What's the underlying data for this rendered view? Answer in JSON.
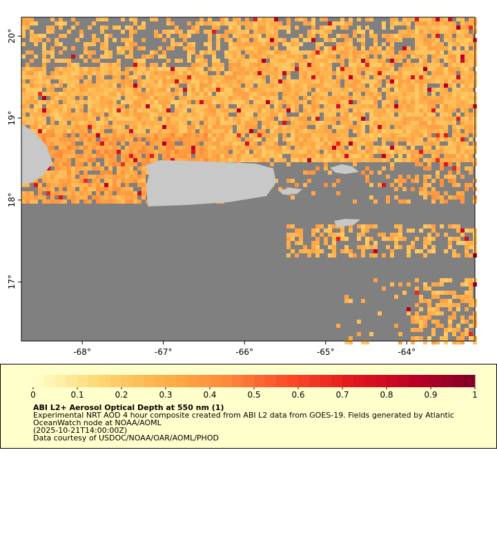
{
  "map": {
    "lat_ticks": [
      {
        "value": 20,
        "label": "20°"
      },
      {
        "value": 19,
        "label": "19°"
      },
      {
        "value": 18,
        "label": "18°"
      },
      {
        "value": 17,
        "label": "17°"
      }
    ],
    "lon_ticks": [
      {
        "value": -68,
        "label": "-68°"
      },
      {
        "value": -67,
        "label": "-67°"
      },
      {
        "value": -66,
        "label": "-66°"
      },
      {
        "value": -65,
        "label": "-65°"
      },
      {
        "value": -64,
        "label": "-64°"
      }
    ],
    "lon_range": [
      -68.75,
      -63.16
    ],
    "lat_range": [
      16.28,
      20.23
    ]
  },
  "colorbar": {
    "ticks": [
      0,
      0.1,
      0.2,
      0.3,
      0.4,
      0.5,
      0.6,
      0.7,
      0.8,
      0.9,
      1
    ],
    "colors": [
      "#ffffcc",
      "#fed976",
      "#feb24c",
      "#fd8d3c",
      "#fc4e2a",
      "#e31a1c",
      "#bd0026",
      "#800026"
    ]
  },
  "legend": {
    "title": "ABI L2+ Aerosol Optical Depth at 550 nm (1)",
    "lines": [
      "Experimental NRT AOD 4 hour composite created from ABI L2 data from GOES-19. Fields generated by Atlantic",
      "OceanWatch node at NOAA/AOML",
      "(2025-10-21T14:00:00Z)",
      "Data courtesy of USDOC/NOAA/OAR/AOML/PHOD"
    ]
  }
}
